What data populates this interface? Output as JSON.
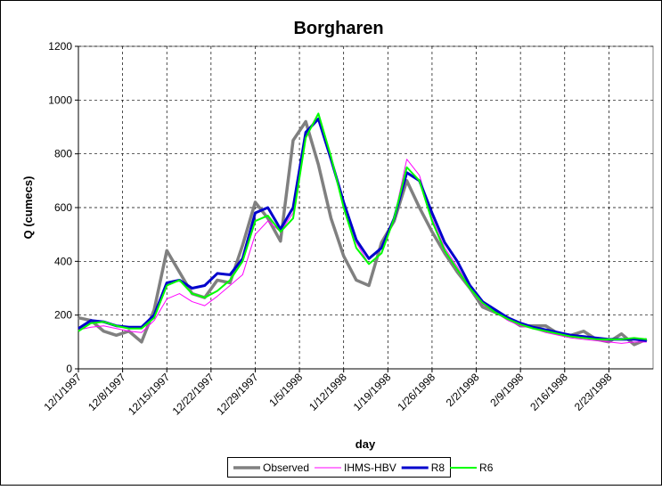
{
  "chart_data": {
    "type": "line",
    "title": "Borgharen",
    "x_label": "day",
    "y_label": "Q (cumecs)",
    "x": [
      "12/1/1997",
      "12/3/1997",
      "12/5/1997",
      "12/7/1997",
      "12/9/1997",
      "12/11/1997",
      "12/13/1997",
      "12/15/1997",
      "12/17/1997",
      "12/19/1997",
      "12/21/1997",
      "12/23/1997",
      "12/25/1997",
      "12/27/1997",
      "12/29/1997",
      "12/31/1997",
      "1/2/1998",
      "1/4/1998",
      "1/6/1998",
      "1/8/1998",
      "1/10/1998",
      "1/12/1998",
      "1/14/1998",
      "1/16/1998",
      "1/18/1998",
      "1/20/1998",
      "1/22/1998",
      "1/24/1998",
      "1/26/1998",
      "1/28/1998",
      "1/30/1998",
      "2/1/1998",
      "2/3/1998",
      "2/5/1998",
      "2/7/1998",
      "2/9/1998",
      "2/11/1998",
      "2/13/1998",
      "2/15/1998",
      "2/17/1998",
      "2/19/1998",
      "2/21/1998",
      "2/23/1998",
      "2/25/1998",
      "2/27/1998",
      "3/1/1998"
    ],
    "series": [
      {
        "name": "Observed",
        "color": "#808080",
        "values": [
          190,
          180,
          140,
          125,
          140,
          100,
          220,
          440,
          360,
          280,
          265,
          330,
          320,
          460,
          620,
          560,
          475,
          850,
          920,
          760,
          560,
          420,
          330,
          310,
          470,
          550,
          700,
          600,
          510,
          430,
          360,
          300,
          230,
          210,
          190,
          160,
          160,
          160,
          130,
          125,
          140,
          110,
          100,
          130,
          90,
          110
        ]
      },
      {
        "name": "IHMS-HBV",
        "color": "#ff00ff",
        "values": [
          145,
          155,
          160,
          150,
          140,
          135,
          180,
          260,
          280,
          250,
          235,
          270,
          310,
          350,
          500,
          550,
          510,
          580,
          870,
          950,
          790,
          610,
          470,
          390,
          430,
          560,
          780,
          720,
          560,
          450,
          380,
          300,
          240,
          210,
          180,
          160,
          150,
          135,
          125,
          115,
          110,
          105,
          100,
          95,
          100,
          100
        ]
      },
      {
        "name": "R8",
        "color": "#0000cc",
        "values": [
          150,
          180,
          175,
          160,
          155,
          155,
          200,
          320,
          330,
          300,
          310,
          355,
          350,
          410,
          580,
          600,
          520,
          600,
          880,
          930,
          780,
          620,
          480,
          410,
          450,
          560,
          730,
          700,
          580,
          470,
          400,
          310,
          250,
          220,
          190,
          170,
          155,
          145,
          135,
          125,
          120,
          115,
          110,
          110,
          110,
          105
        ]
      },
      {
        "name": "R6",
        "color": "#00ff00",
        "values": [
          140,
          170,
          175,
          160,
          150,
          150,
          190,
          310,
          330,
          280,
          265,
          290,
          330,
          400,
          550,
          570,
          510,
          560,
          860,
          950,
          790,
          600,
          450,
          390,
          430,
          560,
          750,
          700,
          550,
          440,
          370,
          300,
          245,
          210,
          185,
          165,
          150,
          140,
          130,
          120,
          115,
          110,
          110,
          110,
          115,
          110
        ]
      }
    ],
    "xlim": [
      "12/1/1997",
      "3/2/1998"
    ],
    "xticks": [
      "12/1/1997",
      "12/8/1997",
      "12/15/1997",
      "12/22/1997",
      "12/29/1997",
      "1/5/1998",
      "1/12/1998",
      "1/19/1998",
      "1/26/1998",
      "2/2/1998",
      "2/9/1998",
      "2/16/1998",
      "2/23/1998"
    ],
    "ylim": [
      0,
      1200
    ],
    "yticks": [
      0,
      200,
      400,
      600,
      800,
      1000,
      1200
    ],
    "grid": true,
    "legend": "bottom"
  }
}
